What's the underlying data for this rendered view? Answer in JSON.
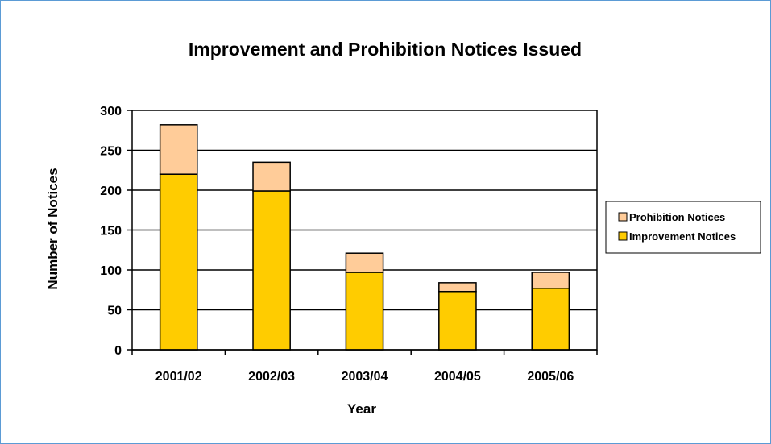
{
  "chart_data": {
    "type": "bar",
    "stacked": true,
    "title": "Improvement and Prohibition Notices Issued",
    "xlabel": "Year",
    "ylabel": "Number of Notices",
    "categories": [
      "2001/02",
      "2002/03",
      "2003/04",
      "2004/05",
      "2005/06"
    ],
    "series": [
      {
        "name": "Improvement Notices",
        "values": [
          220,
          199,
          97,
          73,
          77
        ],
        "color": "#ffcc00"
      },
      {
        "name": "Prohibition Notices",
        "values": [
          62,
          36,
          24,
          11,
          20
        ],
        "color": "#ffcc99"
      }
    ],
    "ylim": [
      0,
      300
    ],
    "yticks": [
      0,
      50,
      100,
      150,
      200,
      250,
      300
    ],
    "grid": true,
    "legend": "right",
    "frame_color": "#5b9bd5"
  }
}
